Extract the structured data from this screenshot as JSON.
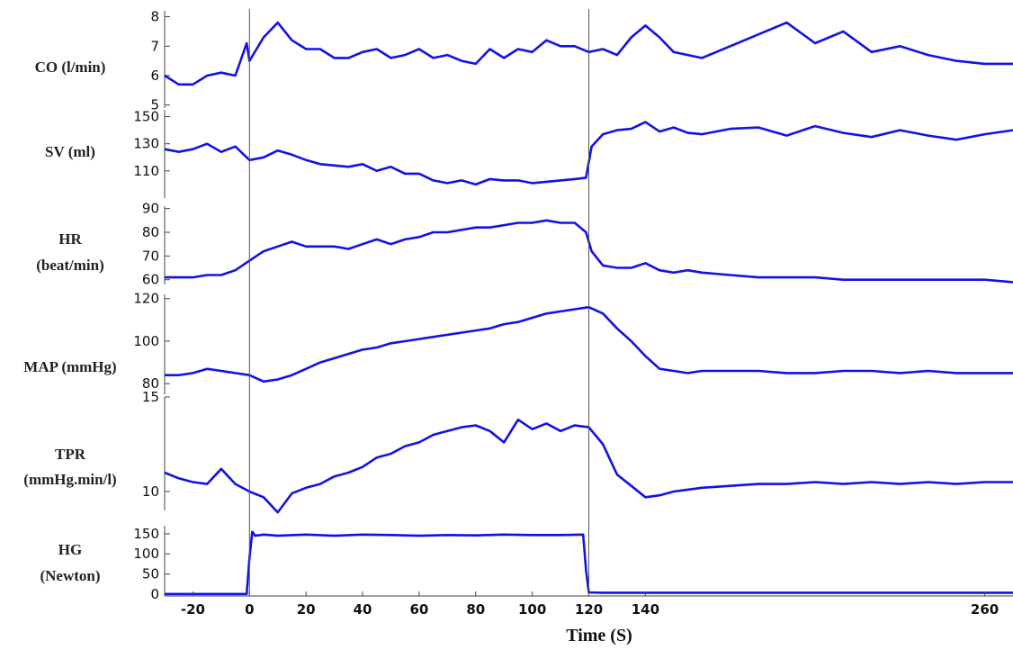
{
  "chart_data": {
    "type": "line",
    "color": "#1212e6",
    "xlabel": "Time (S)",
    "x_ticks": [
      -20,
      0,
      20,
      40,
      60,
      80,
      100,
      120,
      140,
      260
    ],
    "xlim": [
      -30,
      270
    ],
    "markers": [
      0,
      120
    ],
    "panels": [
      {
        "label": [
          "CO (l/min)"
        ],
        "yticks": [
          5,
          6,
          7,
          8
        ],
        "ylim": [
          4.9,
          8.2
        ],
        "x": [
          -30,
          -25,
          -20,
          -15,
          -10,
          -5,
          -1,
          0,
          5,
          10,
          15,
          20,
          25,
          30,
          35,
          40,
          45,
          50,
          55,
          60,
          65,
          70,
          75,
          80,
          85,
          90,
          95,
          100,
          105,
          110,
          115,
          120,
          125,
          130,
          135,
          140,
          145,
          150,
          155,
          160,
          170,
          180,
          190,
          200,
          210,
          220,
          230,
          240,
          250,
          260,
          270
        ],
        "y": [
          6.0,
          5.7,
          5.7,
          6.0,
          6.1,
          6.0,
          7.1,
          6.5,
          7.3,
          7.8,
          7.2,
          6.9,
          6.9,
          6.6,
          6.6,
          6.8,
          6.9,
          6.6,
          6.7,
          6.9,
          6.6,
          6.7,
          6.5,
          6.4,
          6.9,
          6.6,
          6.9,
          6.8,
          7.2,
          7.0,
          7.0,
          6.8,
          6.9,
          6.7,
          7.3,
          7.7,
          7.3,
          6.8,
          6.7,
          6.6,
          7.0,
          7.4,
          7.8,
          7.1,
          7.5,
          6.8,
          7.0,
          6.7,
          6.5,
          6.4,
          6.4
        ]
      },
      {
        "label": [
          "SV (ml)"
        ],
        "yticks": [
          110,
          130,
          150
        ],
        "yticklabels": [
          "110",
          "130",
          "150"
        ],
        "ylim": [
          90,
          155
        ],
        "x": [
          -30,
          -25,
          -20,
          -15,
          -10,
          -5,
          0,
          5,
          10,
          15,
          20,
          25,
          30,
          35,
          40,
          45,
          50,
          55,
          60,
          65,
          70,
          75,
          80,
          85,
          90,
          95,
          100,
          105,
          110,
          115,
          119,
          121,
          125,
          130,
          135,
          140,
          145,
          150,
          155,
          160,
          170,
          180,
          190,
          200,
          210,
          220,
          230,
          240,
          250,
          260,
          270
        ],
        "y": [
          126,
          124,
          126,
          130,
          124,
          128,
          118,
          120,
          125,
          122,
          118,
          115,
          114,
          113,
          115,
          110,
          113,
          108,
          108,
          103,
          101,
          103,
          100,
          104,
          103,
          103,
          101,
          102,
          103,
          104,
          105,
          128,
          137,
          140,
          141,
          146,
          139,
          142,
          138,
          137,
          141,
          142,
          136,
          143,
          138,
          135,
          140,
          136,
          133,
          137,
          140
        ]
      },
      {
        "label": [
          "HR",
          "(beat/min)"
        ],
        "yticks": [
          60,
          70,
          80,
          90
        ],
        "ylim": [
          58,
          91
        ],
        "x": [
          -30,
          -25,
          -20,
          -15,
          -10,
          -5,
          0,
          5,
          10,
          15,
          20,
          25,
          30,
          35,
          40,
          45,
          50,
          55,
          60,
          65,
          70,
          75,
          80,
          85,
          90,
          95,
          100,
          105,
          110,
          115,
          119,
          121,
          125,
          130,
          135,
          140,
          145,
          150,
          155,
          160,
          170,
          180,
          190,
          200,
          210,
          220,
          230,
          240,
          250,
          260,
          270
        ],
        "y": [
          61,
          61,
          61,
          62,
          62,
          64,
          68,
          72,
          74,
          76,
          74,
          74,
          74,
          73,
          75,
          77,
          75,
          77,
          78,
          80,
          80,
          81,
          82,
          82,
          83,
          84,
          84,
          85,
          84,
          84,
          80,
          72,
          66,
          65,
          65,
          67,
          64,
          63,
          64,
          63,
          62,
          61,
          61,
          61,
          60,
          60,
          60,
          60,
          60,
          60,
          59
        ]
      },
      {
        "label": [
          "MAP (mmHg)"
        ],
        "yticks": [
          80,
          100,
          120
        ],
        "ylim": [
          75,
          122
        ],
        "x": [
          -30,
          -25,
          -20,
          -15,
          -10,
          -5,
          0,
          5,
          10,
          15,
          20,
          25,
          30,
          35,
          40,
          45,
          50,
          55,
          60,
          65,
          70,
          75,
          80,
          85,
          90,
          95,
          100,
          105,
          110,
          115,
          120,
          125,
          130,
          135,
          140,
          145,
          150,
          155,
          160,
          170,
          180,
          190,
          200,
          210,
          220,
          230,
          240,
          250,
          260,
          270
        ],
        "y": [
          84,
          84,
          85,
          87,
          86,
          85,
          84,
          81,
          82,
          84,
          87,
          90,
          92,
          94,
          96,
          97,
          99,
          100,
          101,
          102,
          103,
          104,
          105,
          106,
          108,
          109,
          111,
          113,
          114,
          115,
          116,
          113,
          106,
          100,
          93,
          87,
          86,
          85,
          86,
          86,
          86,
          85,
          85,
          86,
          86,
          85,
          86,
          85,
          85,
          85
        ]
      },
      {
        "label": [
          "TPR",
          "(mmHg.min/l)"
        ],
        "yticks": [
          10,
          15
        ],
        "ylim": [
          9.0,
          15.0
        ],
        "x": [
          -30,
          -25,
          -20,
          -15,
          -10,
          -5,
          0,
          5,
          10,
          15,
          20,
          25,
          30,
          35,
          40,
          45,
          50,
          55,
          60,
          65,
          70,
          75,
          80,
          85,
          90,
          95,
          100,
          105,
          110,
          115,
          120,
          125,
          130,
          135,
          140,
          145,
          150,
          155,
          160,
          170,
          180,
          190,
          200,
          210,
          220,
          230,
          240,
          250,
          260,
          270
        ],
        "y": [
          11.0,
          10.7,
          10.5,
          10.4,
          11.2,
          10.4,
          10.0,
          9.7,
          8.9,
          9.9,
          10.2,
          10.4,
          10.8,
          11.0,
          11.3,
          11.8,
          12.0,
          12.4,
          12.6,
          13.0,
          13.2,
          13.4,
          13.5,
          13.2,
          12.6,
          13.8,
          13.3,
          13.6,
          13.2,
          13.5,
          13.4,
          12.5,
          10.9,
          10.3,
          9.7,
          9.8,
          10.0,
          10.1,
          10.2,
          10.3,
          10.4,
          10.4,
          10.5,
          10.4,
          10.5,
          10.4,
          10.5,
          10.4,
          10.5,
          10.5
        ]
      },
      {
        "label": [
          "HG",
          "(Newton)"
        ],
        "yticks": [
          0,
          50,
          100,
          150
        ],
        "ylim": [
          -5,
          170
        ],
        "x": [
          -30,
          -20,
          -10,
          -1,
          0,
          1,
          2,
          5,
          10,
          20,
          30,
          40,
          50,
          60,
          70,
          80,
          90,
          100,
          110,
          118,
          119,
          120,
          125,
          150,
          200,
          270
        ],
        "y": [
          0,
          0,
          0,
          0,
          90,
          155,
          145,
          148,
          145,
          148,
          145,
          148,
          147,
          145,
          147,
          146,
          148,
          147,
          147,
          148,
          60,
          4,
          3,
          3,
          3,
          3
        ]
      }
    ]
  }
}
